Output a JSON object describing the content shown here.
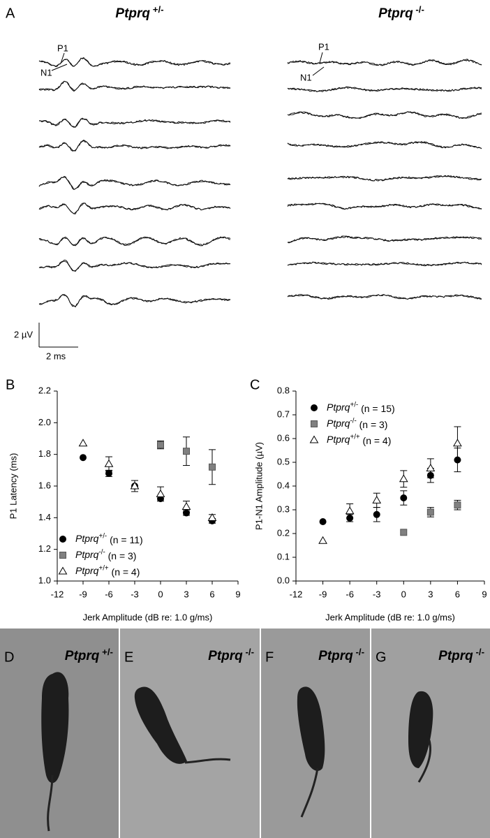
{
  "panel_a": {
    "label": "A",
    "left_title": "Ptprq +/-",
    "right_title": "Ptprq -/-",
    "left_peaks": [
      "P1",
      "N1"
    ],
    "right_peaks": [
      "P1",
      "N1"
    ],
    "scale_bar": {
      "voltage": "2 µV",
      "time": "2 ms"
    }
  },
  "chart_data": [
    {
      "type": "scatter",
      "label": "B",
      "y_label": "P1 Latency (ms)",
      "x_label": "Jerk Amplitude (dB re: 1.0 g/ms)",
      "xlim": [
        -12,
        9
      ],
      "xticks": [
        -12,
        -9,
        -6,
        -3,
        0,
        3,
        6,
        9
      ],
      "ylim": [
        1.0,
        2.2
      ],
      "yticks": [
        {
          "value": 1.0,
          "label": "1.0"
        },
        {
          "value": 1.2,
          "label": "1.2"
        },
        {
          "value": 1.4,
          "label": "1.4"
        },
        {
          "value": 1.6,
          "label": "1.6"
        },
        {
          "value": 1.8,
          "label": "1.8"
        },
        {
          "value": 2.0,
          "label": "2.0"
        },
        {
          "value": 2.2,
          "label": "2.2"
        }
      ],
      "legend": "lower left",
      "series": [
        {
          "name": "Ptprq+/- (n = 11)",
          "marker": "circle",
          "color": "#000000",
          "x": [
            -9,
            -6,
            -3,
            0,
            3,
            6
          ],
          "values": [
            1.78,
            1.68,
            1.6,
            1.52,
            1.43,
            1.38
          ],
          "errors": [
            null,
            0.02,
            null,
            0.015,
            0.015,
            0.015
          ]
        },
        {
          "name": "Ptprq-/- (n = 3)",
          "marker": "square",
          "color": "#808080",
          "x": [
            0,
            3,
            6
          ],
          "values": [
            1.86,
            1.82,
            1.72
          ],
          "errors": [
            0.025,
            0.09,
            0.11
          ]
        },
        {
          "name": "Ptprq+/+ (n = 4)",
          "marker": "triangle",
          "color": "#ffffff",
          "x": [
            -9,
            -6,
            -3,
            0,
            3,
            6
          ],
          "values": [
            1.87,
            1.74,
            1.6,
            1.55,
            1.47,
            1.4
          ],
          "errors": [
            null,
            0.045,
            0.035,
            0.045,
            0.035,
            0.02
          ]
        }
      ]
    },
    {
      "type": "scatter",
      "label": "C",
      "y_label": "P1-N1 Amplitude (µV)",
      "x_label": "Jerk Amplitude (dB re: 1.0 g/ms)",
      "xlim": [
        -12,
        9
      ],
      "xticks": [
        -12,
        -9,
        -6,
        -3,
        0,
        3,
        6,
        9
      ],
      "ylim": [
        0,
        0.8
      ],
      "yticks": [
        {
          "value": 0,
          "label": "0.0"
        },
        0.1,
        0.2,
        0.3,
        0.4,
        0.5,
        0.6,
        0.7,
        0.8
      ],
      "legend": "upper left",
      "series": [
        {
          "name": "Ptprq+/- (n = 15)",
          "marker": "circle",
          "color": "#000000",
          "x": [
            -9,
            -6,
            -3,
            0,
            3,
            6
          ],
          "values": [
            0.25,
            0.265,
            0.28,
            0.35,
            0.445,
            0.51
          ],
          "errors": [
            null,
            0.015,
            0.03,
            0.03,
            0.03,
            0.05
          ]
        },
        {
          "name": "Ptprq-/- (n = 3)",
          "marker": "square",
          "color": "#808080",
          "x": [
            0,
            3,
            6
          ],
          "values": [
            0.205,
            0.29,
            0.32
          ],
          "errors": [
            null,
            0.02,
            0.02
          ]
        },
        {
          "name": "Ptprq+/+ (n = 4)",
          "marker": "triangle",
          "color": "#ffffff",
          "x": [
            -9,
            -6,
            -3,
            0,
            3,
            6
          ],
          "values": [
            0.17,
            0.295,
            0.34,
            0.43,
            0.475,
            0.58
          ],
          "errors": [
            null,
            0.03,
            0.03,
            0.035,
            0.04,
            0.07
          ]
        }
      ]
    }
  ],
  "photos": [
    {
      "label": "D",
      "genotype": "Ptprq +/-"
    },
    {
      "label": "E",
      "genotype": "Ptprq -/-"
    },
    {
      "label": "F",
      "genotype": "Ptprq -/-"
    },
    {
      "label": "G",
      "genotype": "Ptprq -/-"
    }
  ]
}
